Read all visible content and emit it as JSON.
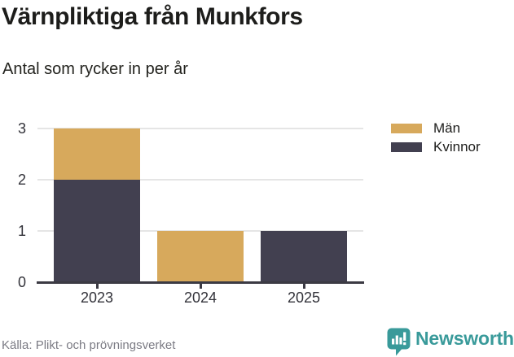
{
  "header": {
    "title": "Värnpliktiga från Munkfors",
    "subtitle": "Antal som rycker in per år"
  },
  "chart_data": {
    "type": "bar",
    "stacked": true,
    "title": "Värnpliktiga från Munkfors",
    "subtitle": "Antal som rycker in per år",
    "categories": [
      "2023",
      "2024",
      "2025"
    ],
    "series": [
      {
        "name": "Män",
        "color": "#d7a95c",
        "values": [
          1,
          1,
          0
        ]
      },
      {
        "name": "Kvinnor",
        "color": "#424050",
        "values": [
          2,
          0,
          1
        ]
      }
    ],
    "totals": [
      3,
      1,
      1
    ],
    "xlabel": "",
    "ylabel": "",
    "yticks": [
      0,
      1,
      2,
      3
    ],
    "ylim": [
      0,
      3
    ],
    "grid": true,
    "legend_position": "top-right"
  },
  "legend": {
    "items": [
      {
        "label": "Män",
        "color": "#d7a95c"
      },
      {
        "label": "Kvinnor",
        "color": "#424050"
      }
    ]
  },
  "footer": {
    "source": "Källa: Plikt- och prövningsverket",
    "brand": "Newsworthy",
    "logo_icon": "bar-chart-speech-bubble-icon"
  },
  "colors": {
    "men_gold": "#d7a95c",
    "women_dark_slate": "#424050",
    "gridline": "#e5e5e5",
    "axis": "#3b3a43",
    "text_dark": "#1d1d1b",
    "tick_label": "#33333a",
    "source_gray": "#7b7b84",
    "brand_teal": "#399a9a"
  }
}
